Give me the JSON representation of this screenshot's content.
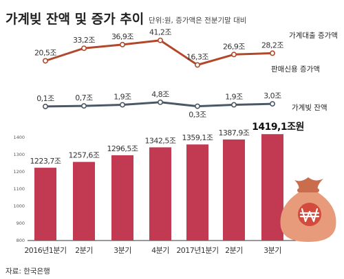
{
  "header": {
    "title": "가계빚 잔액 및 증가 추이",
    "unit_note": "단위:원, 증가액은 전분기말 대비"
  },
  "source": "자료: 한국은행",
  "colors": {
    "bar": "#c23a52",
    "loan_line": "#b2472a",
    "credit_line": "#4a5764",
    "marker_fill": "#ffffff",
    "bag": "#e89b7b",
    "bag_dark": "#c96d4d",
    "won_badge": "#d24b3d"
  },
  "icon": "money-bag-won-icon",
  "chart_data": [
    {
      "type": "line",
      "x": [
        "2016년1분기",
        "2분기",
        "3분기",
        "4분기",
        "2017년1분기",
        "2분기",
        "3분기"
      ],
      "series": [
        {
          "name": "가계대출 증가액",
          "values": [
            20.5,
            33.2,
            36.9,
            41.2,
            16.3,
            26.9,
            28.2
          ],
          "labels": [
            "20,5조",
            "33,2조",
            "36,9조",
            "41,2조",
            "16,3조",
            "26,9조",
            "28,2조"
          ]
        },
        {
          "name": "판매신용 증가액",
          "values": [
            0.1,
            0.7,
            1.9,
            4.8,
            0.3,
            1.9,
            3.0
          ],
          "labels": [
            "0,1조",
            "0,7조",
            "1,9조",
            "4,8조",
            "0,3조",
            "1,9조",
            "3,0조"
          ]
        }
      ]
    },
    {
      "type": "bar",
      "categories": [
        "2016년1분기",
        "2분기",
        "3분기",
        "4분기",
        "2017년1분기",
        "2분기",
        "3분기"
      ],
      "series": [
        {
          "name": "가계빚 잔액",
          "values": [
            1223.7,
            1257.6,
            1296.5,
            1342.5,
            1359.1,
            1387.9,
            1419.1
          ],
          "labels": [
            "1223,7조",
            "1257,6조",
            "1296,5조",
            "1342,5조",
            "1359,1조",
            "1387,9조",
            "1419,1조원"
          ]
        }
      ],
      "ylim": [
        800,
        1400
      ],
      "yticks": [
        800,
        900,
        1000,
        1100,
        1200,
        1300,
        1400
      ]
    }
  ]
}
